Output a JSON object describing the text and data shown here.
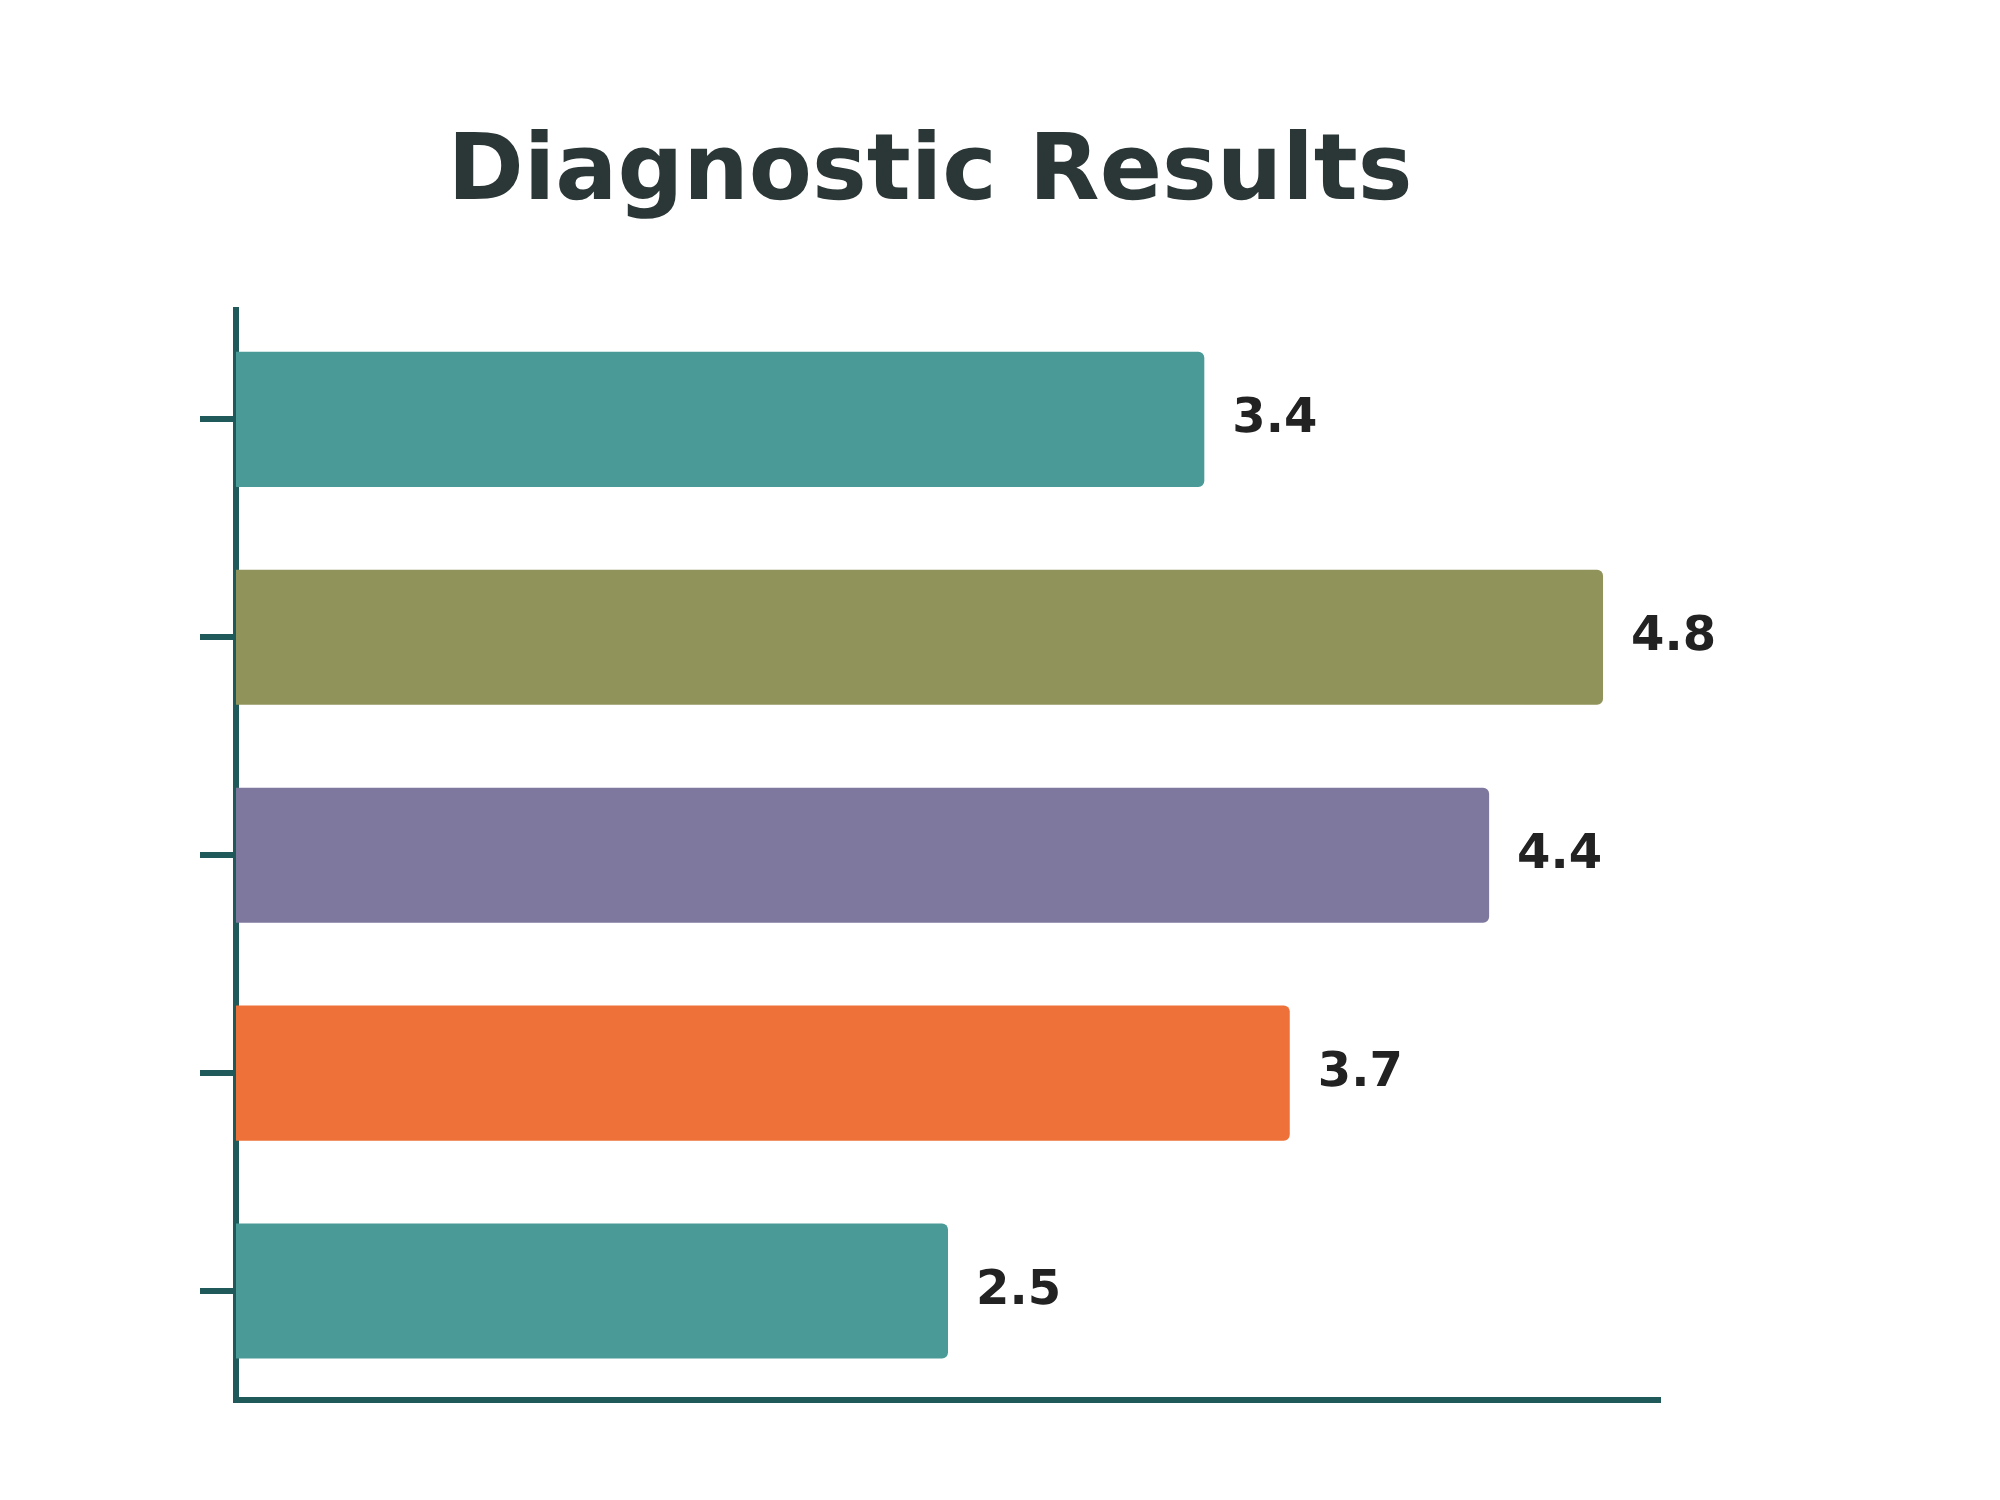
{
  "chart_data": {
    "type": "bar",
    "title": "Diagnostic Results",
    "orientation": "horizontal",
    "categories": [
      null,
      null,
      null,
      null,
      null
    ],
    "values": [
      3.4,
      4.8,
      4.4,
      3.7,
      2.5
    ],
    "colors": [
      "#4a9a97",
      "#91945a",
      "#7f789e",
      "#ee7139",
      "#4a9a97"
    ],
    "data_labels": true,
    "tick_labels": false,
    "grid": false,
    "legend": false
  }
}
